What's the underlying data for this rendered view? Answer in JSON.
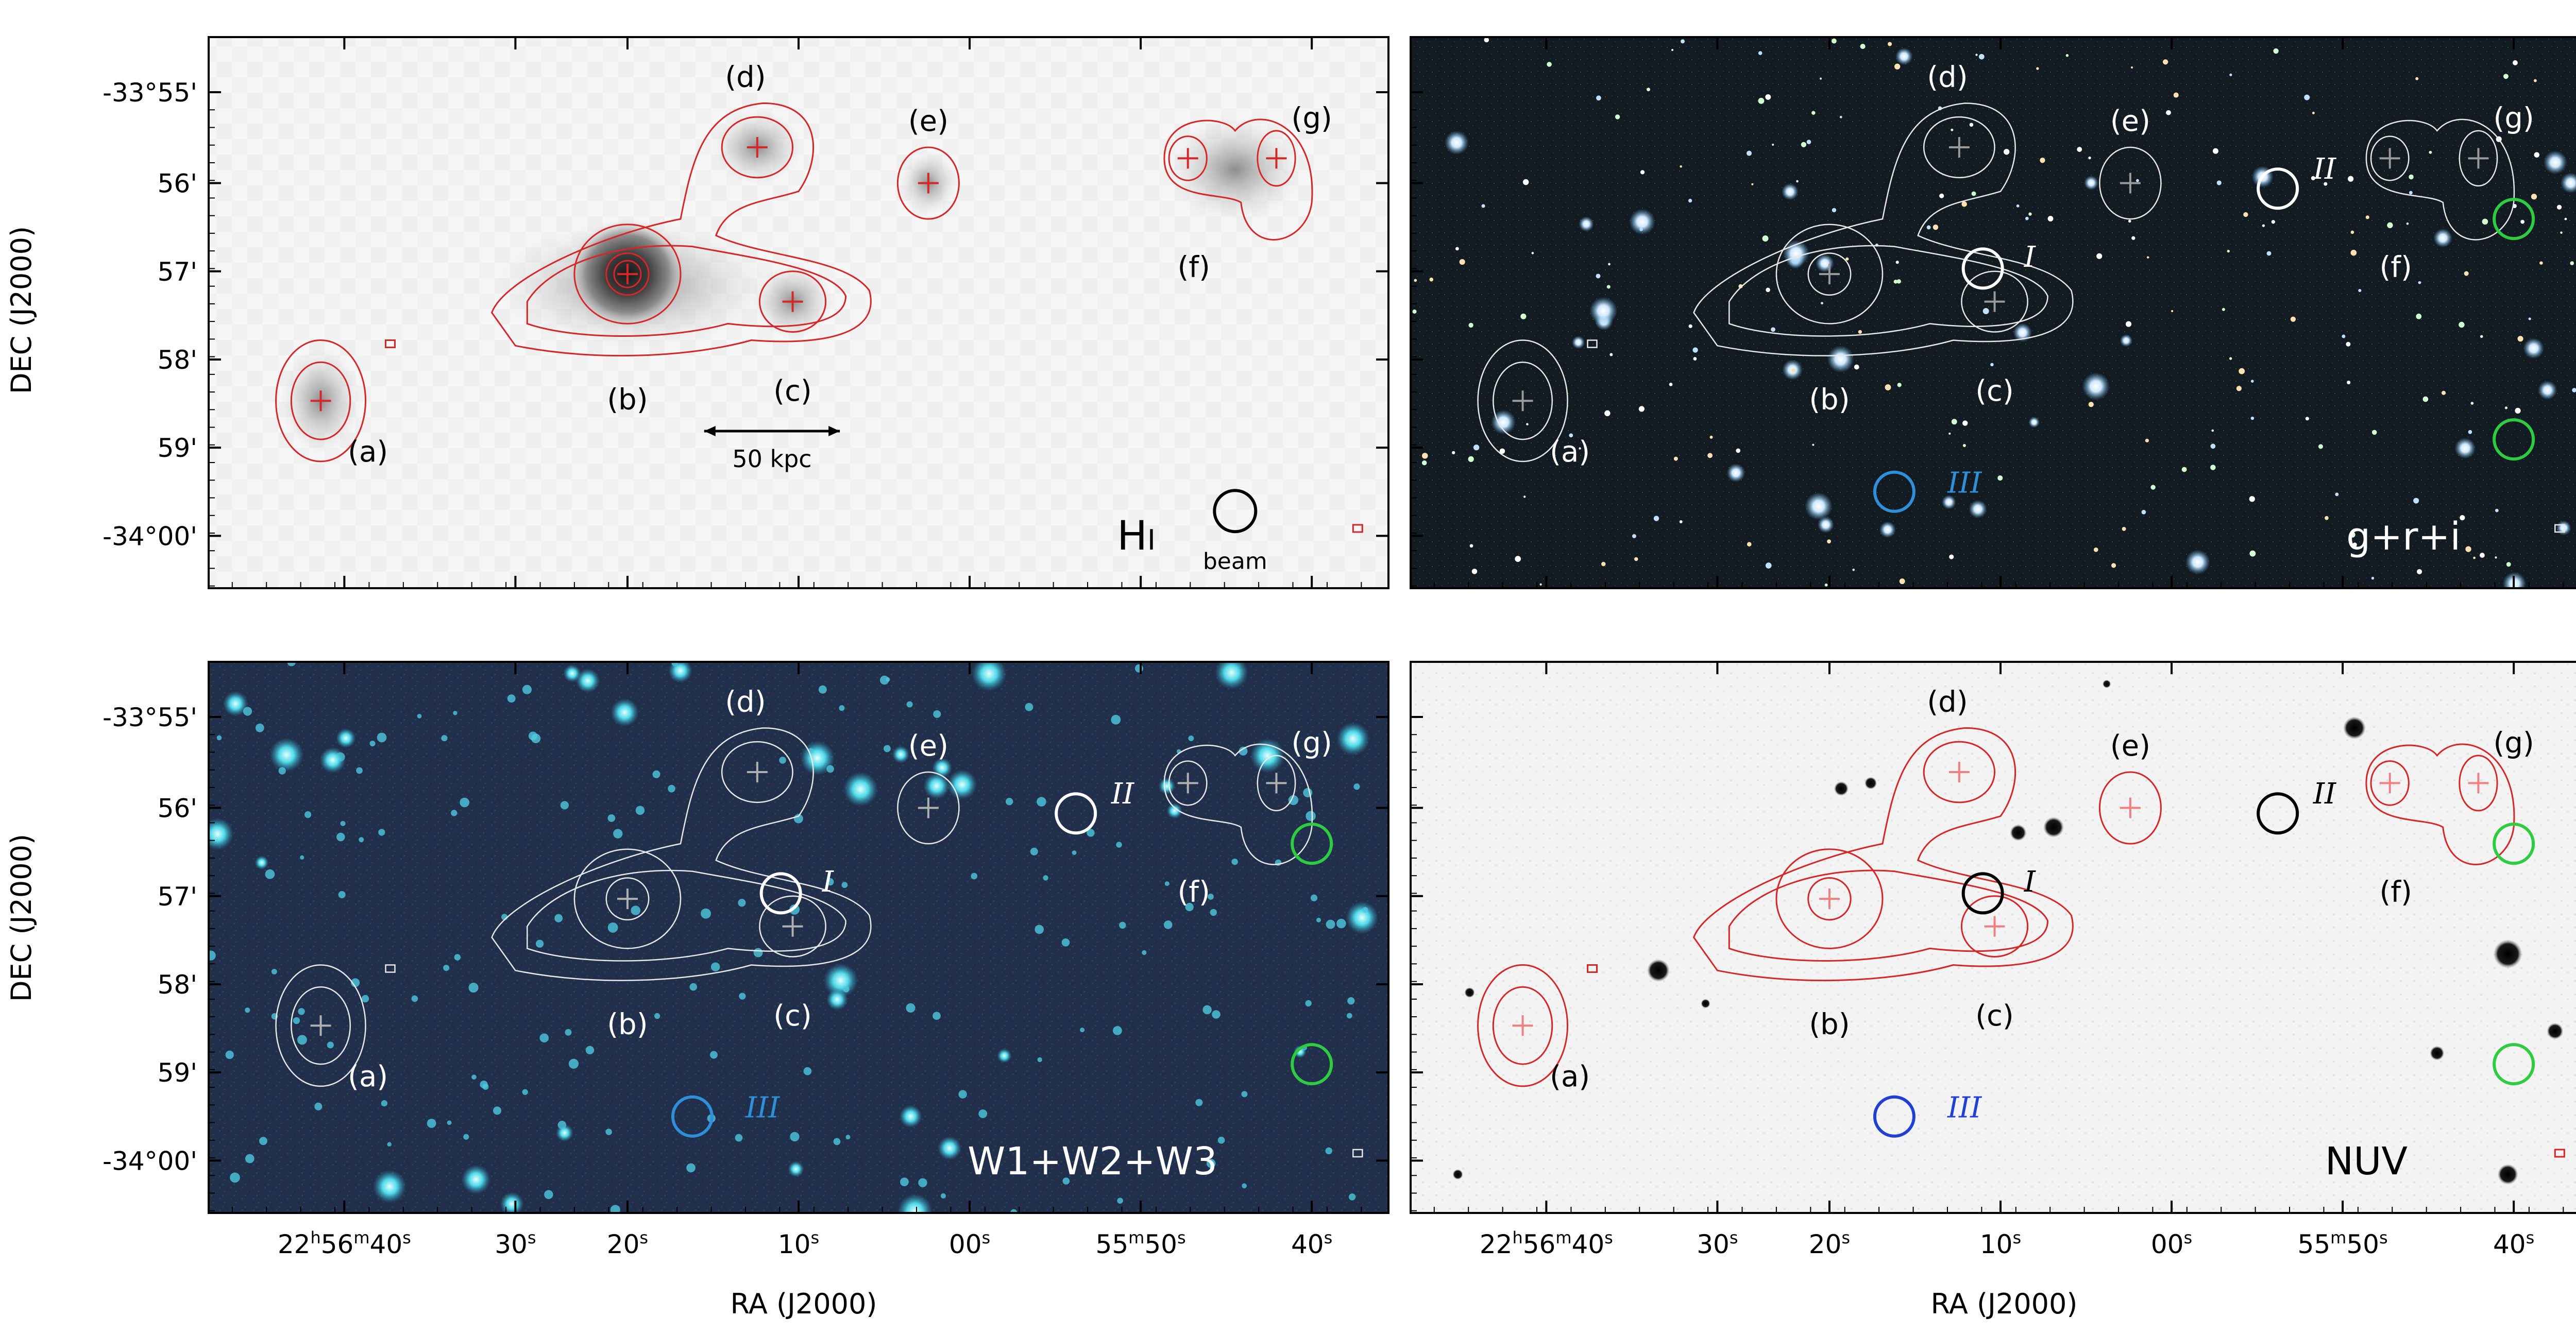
{
  "dec_axis_label": "DEC (J2000)",
  "ra_axis_label": "RA (J2000)",
  "dec_ticks": [
    "-33°55'",
    "56'",
    "57'",
    "58'",
    "59'",
    "-34°00'"
  ],
  "ra_ticks": [
    {
      "main": "22",
      "sup1": "h",
      "mid": "56",
      "sup2": "m",
      "end": "40",
      "sup3": "s"
    },
    {
      "main": "30",
      "sup": "s"
    },
    {
      "main": "20",
      "sup": "s"
    },
    {
      "main": "10",
      "sup": "s"
    },
    {
      "main": "00",
      "sup": "s"
    },
    {
      "main": "55",
      "sup1": "m",
      "end": "50",
      "sup2": "s"
    },
    {
      "main": "40",
      "sup": "s"
    }
  ],
  "source_labels": [
    "(a)",
    "(b)",
    "(c)",
    "(d)",
    "(e)",
    "(f)",
    "(g)"
  ],
  "roman_labels": [
    "I",
    "II",
    "III"
  ],
  "panels": [
    {
      "id": "hi",
      "label": "HI",
      "label_main": "H",
      "label_small": "I",
      "beam_label": "beam",
      "scale_label": "50 kpc",
      "style": "hi"
    },
    {
      "id": "optical",
      "label": "g+r+i",
      "style": "optical"
    },
    {
      "id": "wise",
      "label": "W1+W2+W3",
      "style": "wise"
    },
    {
      "id": "nuv",
      "label": "NUV",
      "style": "nuv"
    }
  ],
  "colors": {
    "contour_red": "#d62728",
    "contour_white": "#e8e8e8",
    "circle_green": "#2ecc40",
    "circle_blue": "#1f3fd6",
    "circle_lightblue": "#2f8fd8",
    "optical_bg": "#121a22",
    "wise_bg": "#1f2e4a",
    "nuv_bg": "#f2f2f2"
  }
}
